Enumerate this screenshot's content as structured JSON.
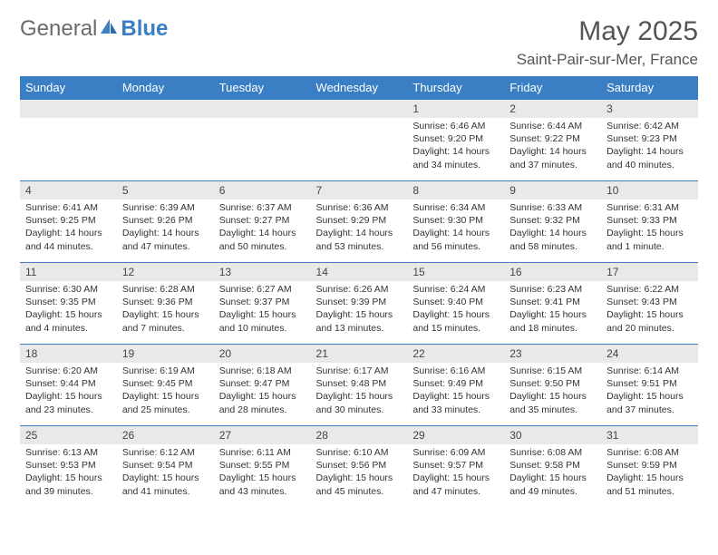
{
  "logo": {
    "general": "General",
    "blue": "Blue"
  },
  "header": {
    "month_title": "May 2025",
    "location": "Saint-Pair-sur-Mer, France"
  },
  "colors": {
    "header_bg": "#3a7fc4",
    "daynum_bg": "#e9e9e9",
    "border": "#3a7fc4"
  },
  "days_of_week": [
    "Sunday",
    "Monday",
    "Tuesday",
    "Wednesday",
    "Thursday",
    "Friday",
    "Saturday"
  ],
  "weeks": [
    [
      null,
      null,
      null,
      null,
      {
        "n": "1",
        "sr": "Sunrise: 6:46 AM",
        "ss": "Sunset: 9:20 PM",
        "dl1": "Daylight: 14 hours",
        "dl2": "and 34 minutes."
      },
      {
        "n": "2",
        "sr": "Sunrise: 6:44 AM",
        "ss": "Sunset: 9:22 PM",
        "dl1": "Daylight: 14 hours",
        "dl2": "and 37 minutes."
      },
      {
        "n": "3",
        "sr": "Sunrise: 6:42 AM",
        "ss": "Sunset: 9:23 PM",
        "dl1": "Daylight: 14 hours",
        "dl2": "and 40 minutes."
      }
    ],
    [
      {
        "n": "4",
        "sr": "Sunrise: 6:41 AM",
        "ss": "Sunset: 9:25 PM",
        "dl1": "Daylight: 14 hours",
        "dl2": "and 44 minutes."
      },
      {
        "n": "5",
        "sr": "Sunrise: 6:39 AM",
        "ss": "Sunset: 9:26 PM",
        "dl1": "Daylight: 14 hours",
        "dl2": "and 47 minutes."
      },
      {
        "n": "6",
        "sr": "Sunrise: 6:37 AM",
        "ss": "Sunset: 9:27 PM",
        "dl1": "Daylight: 14 hours",
        "dl2": "and 50 minutes."
      },
      {
        "n": "7",
        "sr": "Sunrise: 6:36 AM",
        "ss": "Sunset: 9:29 PM",
        "dl1": "Daylight: 14 hours",
        "dl2": "and 53 minutes."
      },
      {
        "n": "8",
        "sr": "Sunrise: 6:34 AM",
        "ss": "Sunset: 9:30 PM",
        "dl1": "Daylight: 14 hours",
        "dl2": "and 56 minutes."
      },
      {
        "n": "9",
        "sr": "Sunrise: 6:33 AM",
        "ss": "Sunset: 9:32 PM",
        "dl1": "Daylight: 14 hours",
        "dl2": "and 58 minutes."
      },
      {
        "n": "10",
        "sr": "Sunrise: 6:31 AM",
        "ss": "Sunset: 9:33 PM",
        "dl1": "Daylight: 15 hours",
        "dl2": "and 1 minute."
      }
    ],
    [
      {
        "n": "11",
        "sr": "Sunrise: 6:30 AM",
        "ss": "Sunset: 9:35 PM",
        "dl1": "Daylight: 15 hours",
        "dl2": "and 4 minutes."
      },
      {
        "n": "12",
        "sr": "Sunrise: 6:28 AM",
        "ss": "Sunset: 9:36 PM",
        "dl1": "Daylight: 15 hours",
        "dl2": "and 7 minutes."
      },
      {
        "n": "13",
        "sr": "Sunrise: 6:27 AM",
        "ss": "Sunset: 9:37 PM",
        "dl1": "Daylight: 15 hours",
        "dl2": "and 10 minutes."
      },
      {
        "n": "14",
        "sr": "Sunrise: 6:26 AM",
        "ss": "Sunset: 9:39 PM",
        "dl1": "Daylight: 15 hours",
        "dl2": "and 13 minutes."
      },
      {
        "n": "15",
        "sr": "Sunrise: 6:24 AM",
        "ss": "Sunset: 9:40 PM",
        "dl1": "Daylight: 15 hours",
        "dl2": "and 15 minutes."
      },
      {
        "n": "16",
        "sr": "Sunrise: 6:23 AM",
        "ss": "Sunset: 9:41 PM",
        "dl1": "Daylight: 15 hours",
        "dl2": "and 18 minutes."
      },
      {
        "n": "17",
        "sr": "Sunrise: 6:22 AM",
        "ss": "Sunset: 9:43 PM",
        "dl1": "Daylight: 15 hours",
        "dl2": "and 20 minutes."
      }
    ],
    [
      {
        "n": "18",
        "sr": "Sunrise: 6:20 AM",
        "ss": "Sunset: 9:44 PM",
        "dl1": "Daylight: 15 hours",
        "dl2": "and 23 minutes."
      },
      {
        "n": "19",
        "sr": "Sunrise: 6:19 AM",
        "ss": "Sunset: 9:45 PM",
        "dl1": "Daylight: 15 hours",
        "dl2": "and 25 minutes."
      },
      {
        "n": "20",
        "sr": "Sunrise: 6:18 AM",
        "ss": "Sunset: 9:47 PM",
        "dl1": "Daylight: 15 hours",
        "dl2": "and 28 minutes."
      },
      {
        "n": "21",
        "sr": "Sunrise: 6:17 AM",
        "ss": "Sunset: 9:48 PM",
        "dl1": "Daylight: 15 hours",
        "dl2": "and 30 minutes."
      },
      {
        "n": "22",
        "sr": "Sunrise: 6:16 AM",
        "ss": "Sunset: 9:49 PM",
        "dl1": "Daylight: 15 hours",
        "dl2": "and 33 minutes."
      },
      {
        "n": "23",
        "sr": "Sunrise: 6:15 AM",
        "ss": "Sunset: 9:50 PM",
        "dl1": "Daylight: 15 hours",
        "dl2": "and 35 minutes."
      },
      {
        "n": "24",
        "sr": "Sunrise: 6:14 AM",
        "ss": "Sunset: 9:51 PM",
        "dl1": "Daylight: 15 hours",
        "dl2": "and 37 minutes."
      }
    ],
    [
      {
        "n": "25",
        "sr": "Sunrise: 6:13 AM",
        "ss": "Sunset: 9:53 PM",
        "dl1": "Daylight: 15 hours",
        "dl2": "and 39 minutes."
      },
      {
        "n": "26",
        "sr": "Sunrise: 6:12 AM",
        "ss": "Sunset: 9:54 PM",
        "dl1": "Daylight: 15 hours",
        "dl2": "and 41 minutes."
      },
      {
        "n": "27",
        "sr": "Sunrise: 6:11 AM",
        "ss": "Sunset: 9:55 PM",
        "dl1": "Daylight: 15 hours",
        "dl2": "and 43 minutes."
      },
      {
        "n": "28",
        "sr": "Sunrise: 6:10 AM",
        "ss": "Sunset: 9:56 PM",
        "dl1": "Daylight: 15 hours",
        "dl2": "and 45 minutes."
      },
      {
        "n": "29",
        "sr": "Sunrise: 6:09 AM",
        "ss": "Sunset: 9:57 PM",
        "dl1": "Daylight: 15 hours",
        "dl2": "and 47 minutes."
      },
      {
        "n": "30",
        "sr": "Sunrise: 6:08 AM",
        "ss": "Sunset: 9:58 PM",
        "dl1": "Daylight: 15 hours",
        "dl2": "and 49 minutes."
      },
      {
        "n": "31",
        "sr": "Sunrise: 6:08 AM",
        "ss": "Sunset: 9:59 PM",
        "dl1": "Daylight: 15 hours",
        "dl2": "and 51 minutes."
      }
    ]
  ]
}
